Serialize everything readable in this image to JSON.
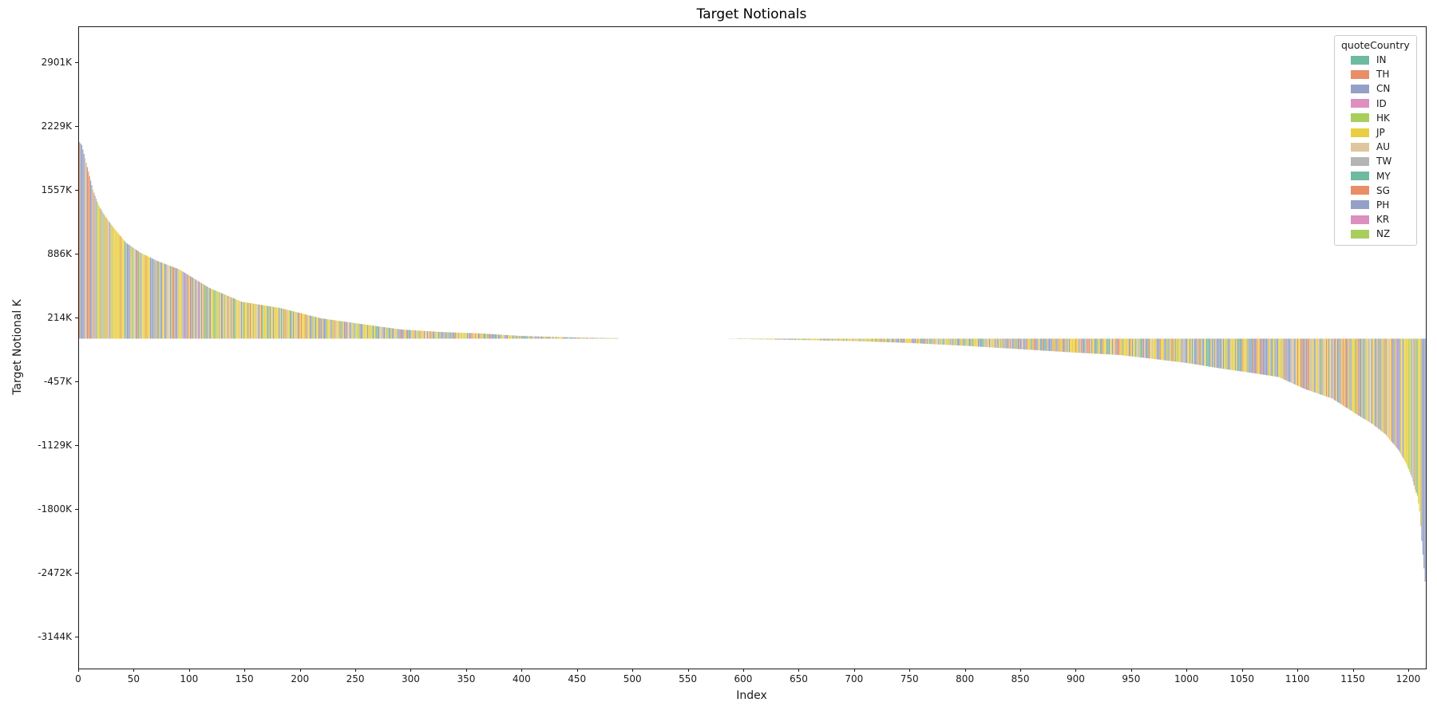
{
  "figure": {
    "title": "Target Notionals",
    "xlabel": "Index",
    "ylabel": "Target Notional K"
  },
  "legend": {
    "title": "quoteCountry",
    "entries": [
      {
        "label": "IN",
        "color": "#6dbaa0"
      },
      {
        "label": "TH",
        "color": "#e88e68"
      },
      {
        "label": "CN",
        "color": "#94a0c5"
      },
      {
        "label": "ID",
        "color": "#dd8fc0"
      },
      {
        "label": "HK",
        "color": "#a8ce60"
      },
      {
        "label": "JP",
        "color": "#e9d043"
      },
      {
        "label": "AU",
        "color": "#dfc79d"
      },
      {
        "label": "TW",
        "color": "#b5b5b5"
      },
      {
        "label": "MY",
        "color": "#6dbaa0"
      },
      {
        "label": "SG",
        "color": "#e88e68"
      },
      {
        "label": "PH",
        "color": "#94a0c5"
      },
      {
        "label": "KR",
        "color": "#dd8fc0"
      },
      {
        "label": "NZ",
        "color": "#a8ce60"
      }
    ]
  },
  "chart_data": {
    "type": "bar",
    "title": "Target Notionals",
    "xlabel": "Index",
    "ylabel": "Target Notional K",
    "units": "K",
    "n_bars": 1215,
    "xlim": [
      0,
      1215
    ],
    "ylim": [
      -3475,
      3282
    ],
    "grid": false,
    "legend_position": "upper right",
    "colored_by": "quoteCountry",
    "x_tick_step": 50,
    "x_tick_max": 1200,
    "y_ticks": [
      {
        "value": 2901,
        "label": "2901K"
      },
      {
        "value": 2229,
        "label": "2229K"
      },
      {
        "value": 1557,
        "label": "1557K"
      },
      {
        "value": 886,
        "label": "886K"
      },
      {
        "value": 214,
        "label": "214K"
      },
      {
        "value": -457,
        "label": "-457K"
      },
      {
        "value": -1129,
        "label": "-1129K"
      },
      {
        "value": -1800,
        "label": "-1800K"
      },
      {
        "value": -2472,
        "label": "-2472K"
      },
      {
        "value": -3144,
        "label": "-3144K"
      }
    ],
    "description": "Sorted bar chart of target notionals (K) per trade index, colored by quoteCountry; positive values descend from ~2070K to ~0 over indices 0-486, near-zero plateau 487-585, negative values deepen from ~0 to ~-2560K over indices 586-1214.",
    "envelope_positive": [
      [
        0,
        2070
      ],
      [
        2,
        2040
      ],
      [
        5,
        1900
      ],
      [
        8,
        1760
      ],
      [
        12,
        1570
      ],
      [
        17,
        1410
      ],
      [
        22,
        1310
      ],
      [
        30,
        1180
      ],
      [
        42,
        1010
      ],
      [
        55,
        905
      ],
      [
        70,
        820
      ],
      [
        90,
        730
      ],
      [
        117,
        535
      ],
      [
        146,
        390
      ],
      [
        181,
        323
      ],
      [
        218,
        214
      ],
      [
        254,
        155
      ],
      [
        290,
        97
      ],
      [
        325,
        71
      ],
      [
        362,
        55
      ],
      [
        398,
        29
      ],
      [
        430,
        18
      ],
      [
        460,
        10
      ],
      [
        486,
        5
      ]
    ],
    "near_zero_range": [
      487,
      585
    ],
    "envelope_negative": [
      [
        586,
        -2
      ],
      [
        620,
        -8
      ],
      [
        650,
        -14
      ],
      [
        700,
        -26
      ],
      [
        750,
        -46
      ],
      [
        800,
        -76
      ],
      [
        850,
        -112
      ],
      [
        900,
        -148
      ],
      [
        938,
        -172
      ],
      [
        970,
        -215
      ],
      [
        1000,
        -258
      ],
      [
        1030,
        -315
      ],
      [
        1060,
        -365
      ],
      [
        1082,
        -405
      ],
      [
        1106,
        -533
      ],
      [
        1130,
        -630
      ],
      [
        1154,
        -810
      ],
      [
        1166,
        -895
      ],
      [
        1178,
        -1005
      ],
      [
        1190,
        -1172
      ],
      [
        1197,
        -1315
      ],
      [
        1202,
        -1460
      ],
      [
        1205,
        -1590
      ],
      [
        1207,
        -1655
      ],
      [
        1209,
        -1820
      ],
      [
        1211,
        -2130
      ],
      [
        1213,
        -2420
      ],
      [
        1214,
        -2560
      ]
    ],
    "color_weights": {
      "JP": 0.33,
      "CN": 0.27,
      "AU": 0.09,
      "TW": 0.07,
      "IN": 0.06,
      "TH": 0.055,
      "HK": 0.045,
      "SG": 0.025,
      "PH": 0.02,
      "ID": 0.015,
      "NZ": 0.01,
      "KR": 0.005,
      "MY": 0.005
    },
    "bar_color_overrides": {
      "0": "TH",
      "1": "CN",
      "2": "CN",
      "1207": "NZ",
      "1211": "CN",
      "1213": "CN",
      "1214": "CN"
    }
  }
}
